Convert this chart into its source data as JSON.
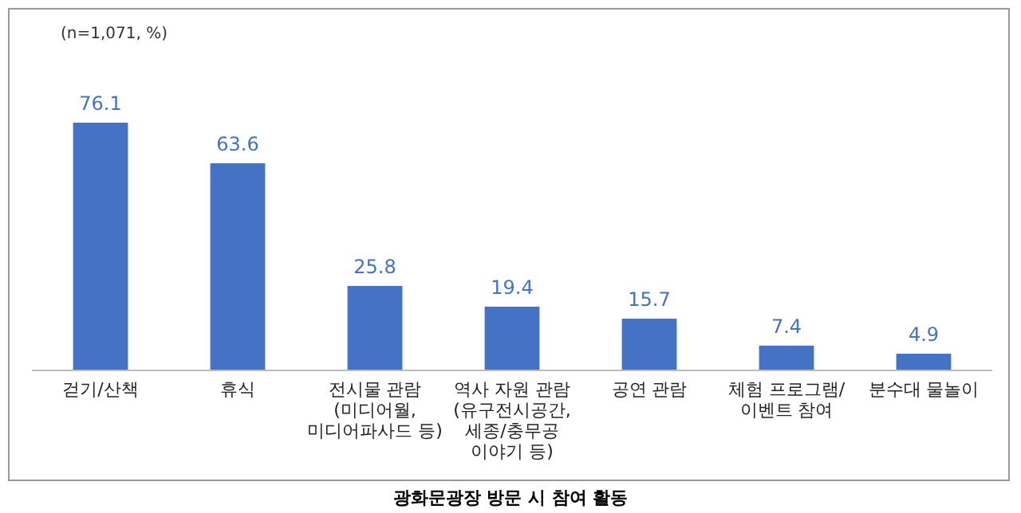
{
  "chart_data": {
    "type": "bar",
    "xlabel": "광화문광장 방문 시 참여 활동",
    "annotations": [
      "(n=1,071, %)"
    ],
    "categories": [
      "걷기/산책",
      "휴식",
      "전시물 관람\n(미디어월,\n미디어파사드 등)",
      "역사 자원 관람\n(유구전시공간,\n세종/충무공\n이야기 등)",
      "공연 관람",
      "체험 프로그램/\n이벤트 참여",
      "분수대 물놀이"
    ],
    "values": [
      76.1,
      63.6,
      25.8,
      19.4,
      15.7,
      7.4,
      4.9
    ],
    "color": "#4472c4",
    "data_labels": true
  }
}
